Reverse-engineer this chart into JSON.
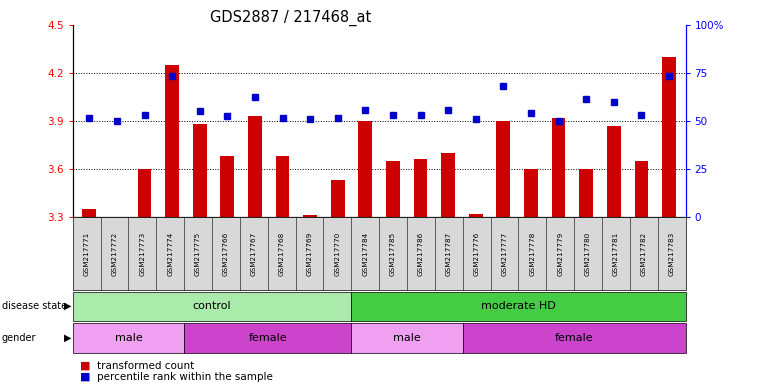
{
  "title": "GDS2887 / 217468_at",
  "samples": [
    "GSM217771",
    "GSM217772",
    "GSM217773",
    "GSM217774",
    "GSM217775",
    "GSM217766",
    "GSM217767",
    "GSM217768",
    "GSM217769",
    "GSM217770",
    "GSM217784",
    "GSM217785",
    "GSM217786",
    "GSM217787",
    "GSM217776",
    "GSM217777",
    "GSM217778",
    "GSM217779",
    "GSM217780",
    "GSM217781",
    "GSM217782",
    "GSM217783"
  ],
  "bar_values": [
    3.35,
    3.28,
    3.6,
    4.25,
    3.88,
    3.68,
    3.93,
    3.68,
    3.31,
    3.53,
    3.9,
    3.65,
    3.66,
    3.7,
    3.32,
    3.9,
    3.6,
    3.92,
    3.6,
    3.87,
    3.65,
    4.3
  ],
  "dot_values": [
    3.92,
    3.9,
    3.94,
    4.18,
    3.96,
    3.93,
    4.05,
    3.92,
    3.91,
    3.92,
    3.97,
    3.94,
    3.94,
    3.97,
    3.91,
    4.12,
    3.95,
    3.9,
    4.04,
    4.02,
    3.94,
    4.18
  ],
  "bar_color": "#cc0000",
  "dot_color": "#0000cc",
  "ylim_left": [
    3.3,
    4.5
  ],
  "ylim_right": [
    0,
    100
  ],
  "yticks_left": [
    3.3,
    3.6,
    3.9,
    4.2,
    4.5
  ],
  "yticks_right": [
    0,
    25,
    50,
    75,
    100
  ],
  "ytick_labels_right": [
    "0",
    "25",
    "50",
    "75",
    "100%"
  ],
  "disease_state_groups": [
    {
      "label": "control",
      "start": 0,
      "end": 9,
      "color": "#aaeaaa"
    },
    {
      "label": "moderate HD",
      "start": 10,
      "end": 21,
      "color": "#44cc44"
    }
  ],
  "gender_groups": [
    {
      "label": "male",
      "start": 0,
      "end": 3,
      "color": "#f0a0f0"
    },
    {
      "label": "female",
      "start": 4,
      "end": 9,
      "color": "#cc44cc"
    },
    {
      "label": "male",
      "start": 10,
      "end": 13,
      "color": "#f0a0f0"
    },
    {
      "label": "female",
      "start": 14,
      "end": 21,
      "color": "#cc44cc"
    }
  ]
}
